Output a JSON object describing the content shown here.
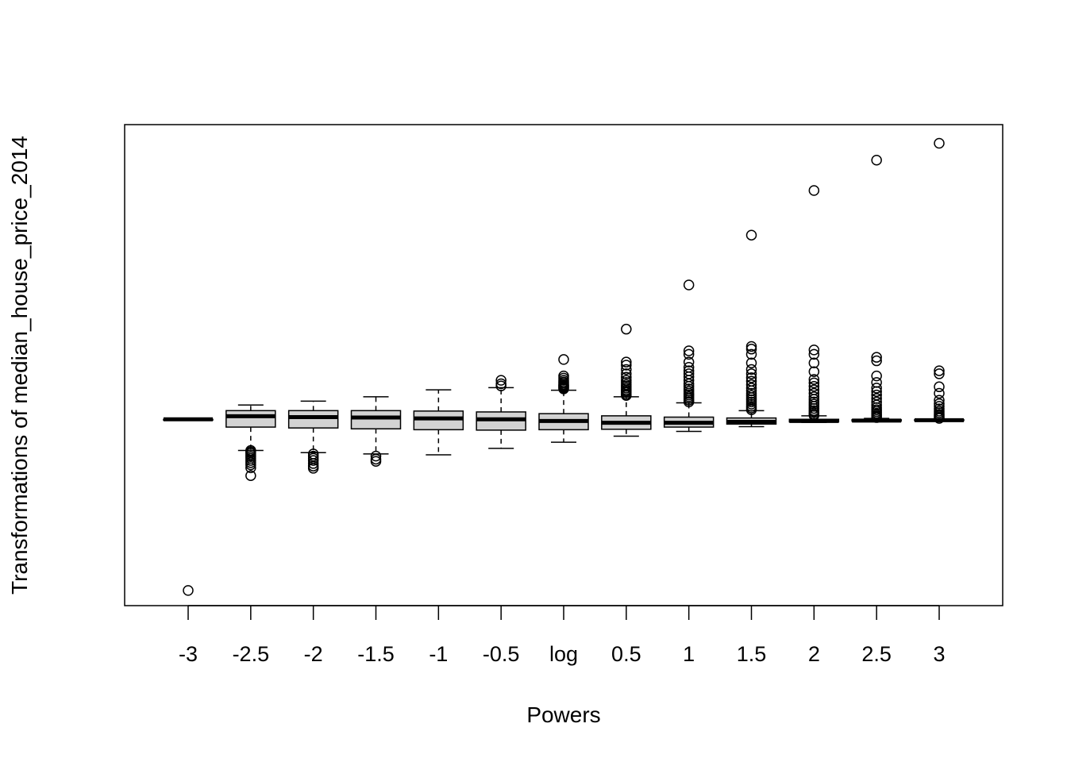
{
  "chart_data": {
    "type": "boxplot",
    "title": "",
    "xlabel": "Powers",
    "ylabel": "Transformations of median_house_price_2014",
    "categories": [
      "-3",
      "-2.5",
      "-2",
      "-1.5",
      "-1",
      "-0.5",
      "log",
      "0.5",
      "1",
      "1.5",
      "2",
      "2.5",
      "3"
    ],
    "y_axis_ticks_shown": false,
    "ylim": [
      -4.3,
      6.8
    ],
    "boxes_fill": "#d3d3d3",
    "series": [
      {
        "name": "-3",
        "whisker_low": 0.0,
        "q1": 0.0,
        "median": 0.0,
        "q3": 0.0,
        "whisker_high": 0.0,
        "outliers": [
          -3.95
        ]
      },
      {
        "name": "-2.5",
        "whisker_low": -0.72,
        "q1": -0.18,
        "median": 0.07,
        "q3": 0.2,
        "whisker_high": 0.33,
        "outliers": [
          -0.72,
          -0.75,
          -0.78,
          -0.82,
          -0.86,
          -0.9,
          -0.95,
          -1.0,
          -1.05,
          -1.12,
          -1.3
        ]
      },
      {
        "name": "-2",
        "whisker_low": -0.77,
        "q1": -0.2,
        "median": 0.05,
        "q3": 0.2,
        "whisker_high": 0.42,
        "outliers": [
          -0.8,
          -0.85,
          -0.9,
          -0.95,
          -1.02,
          -1.08,
          -1.13
        ]
      },
      {
        "name": "-1.5",
        "whisker_low": -0.8,
        "q1": -0.22,
        "median": 0.04,
        "q3": 0.2,
        "whisker_high": 0.52,
        "outliers": [
          -0.85,
          -0.92,
          -0.97
        ]
      },
      {
        "name": "-1",
        "whisker_low": -0.82,
        "q1": -0.24,
        "median": 0.02,
        "q3": 0.19,
        "whisker_high": 0.68,
        "outliers": []
      },
      {
        "name": "-0.5",
        "whisker_low": -0.67,
        "q1": -0.25,
        "median": 0.0,
        "q3": 0.17,
        "whisker_high": 0.73,
        "outliers": [
          0.77,
          0.82,
          0.9
        ]
      },
      {
        "name": "log",
        "whisker_low": -0.53,
        "q1": -0.24,
        "median": -0.04,
        "q3": 0.13,
        "whisker_high": 0.67,
        "outliers": [
          0.7,
          0.72,
          0.74,
          0.76,
          0.78,
          0.8,
          0.83,
          0.86,
          0.9,
          0.95,
          1.0,
          1.38
        ]
      },
      {
        "name": "0.5",
        "whisker_low": -0.39,
        "q1": -0.23,
        "median": -0.08,
        "q3": 0.08,
        "whisker_high": 0.52,
        "outliers": [
          0.55,
          0.58,
          0.62,
          0.65,
          0.68,
          0.72,
          0.76,
          0.8,
          0.85,
          0.9,
          0.97,
          1.05,
          1.15,
          1.25,
          1.32,
          2.08
        ]
      },
      {
        "name": "1",
        "whisker_low": -0.28,
        "q1": -0.18,
        "median": -0.08,
        "q3": 0.05,
        "whisker_high": 0.38,
        "outliers": [
          0.4,
          0.44,
          0.48,
          0.52,
          0.56,
          0.6,
          0.65,
          0.7,
          0.76,
          0.82,
          0.9,
          0.98,
          1.05,
          1.12,
          1.2,
          1.32,
          1.5,
          1.58,
          3.1
        ]
      },
      {
        "name": "1.5",
        "whisker_low": -0.17,
        "q1": -0.11,
        "median": -0.06,
        "q3": 0.03,
        "whisker_high": 0.2,
        "outliers": [
          0.22,
          0.26,
          0.3,
          0.35,
          0.4,
          0.45,
          0.5,
          0.55,
          0.6,
          0.66,
          0.72,
          0.8,
          0.88,
          0.96,
          1.05,
          1.15,
          1.3,
          1.5,
          1.62,
          1.68,
          4.25
        ]
      },
      {
        "name": "2",
        "whisker_low": -0.07,
        "q1": -0.06,
        "median": -0.04,
        "q3": 0.0,
        "whisker_high": 0.08,
        "outliers": [
          0.09,
          0.12,
          0.16,
          0.2,
          0.25,
          0.3,
          0.35,
          0.4,
          0.46,
          0.52,
          0.6,
          0.68,
          0.76,
          0.84,
          0.92,
          1.1,
          1.3,
          1.5,
          1.6,
          5.28
        ]
      },
      {
        "name": "2.5",
        "whisker_low": -0.04,
        "q1": -0.04,
        "median": -0.03,
        "q3": -0.01,
        "whisker_high": 0.02,
        "outliers": [
          0.04,
          0.07,
          0.1,
          0.14,
          0.18,
          0.22,
          0.27,
          0.33,
          0.4,
          0.48,
          0.56,
          0.64,
          0.72,
          0.85,
          1.0,
          1.35,
          1.43,
          5.98
        ]
      },
      {
        "name": "3",
        "whisker_low": -0.03,
        "q1": -0.03,
        "median": -0.02,
        "q3": -0.01,
        "whisker_high": 0.0,
        "outliers": [
          0.02,
          0.05,
          0.08,
          0.11,
          0.15,
          0.19,
          0.24,
          0.3,
          0.36,
          0.44,
          0.6,
          0.75,
          1.05,
          1.12,
          6.37
        ]
      }
    ]
  }
}
